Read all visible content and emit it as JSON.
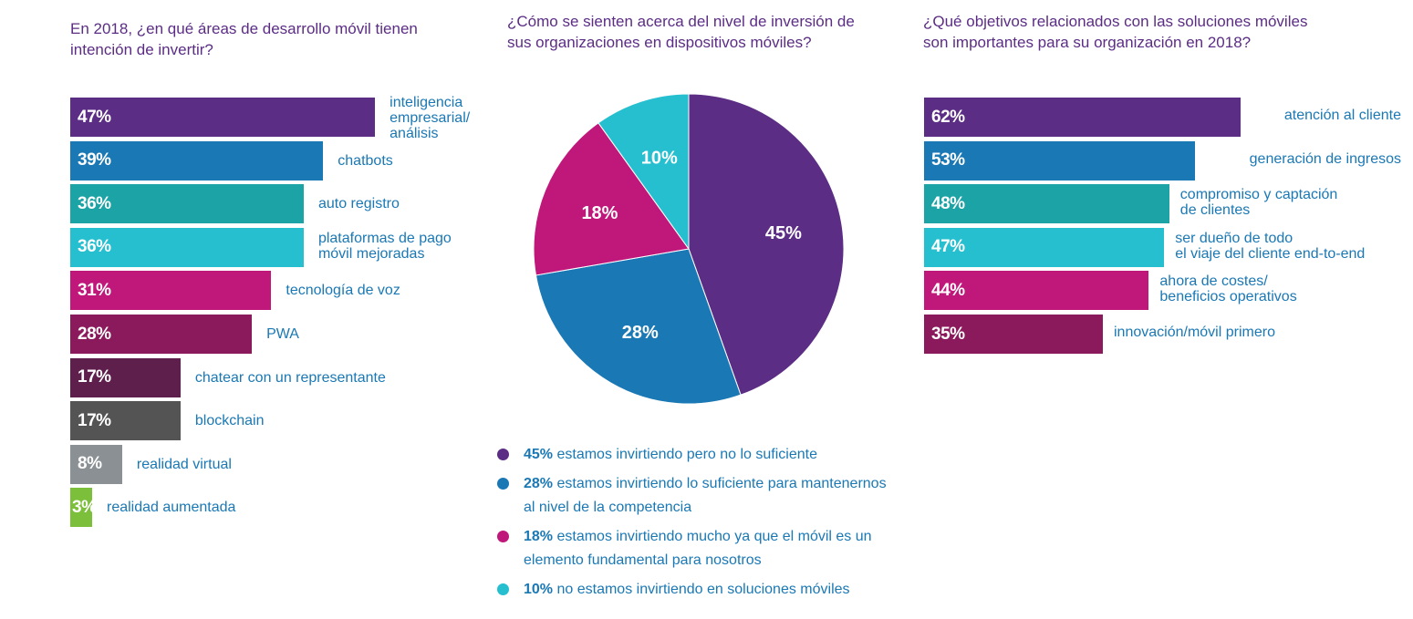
{
  "colors": {
    "title": "#5b2d84",
    "label": "#1a78b4"
  },
  "left": {
    "title": "En 2018, ¿en qué áreas de desarrollo móvil tienen\nintención de invertir?",
    "max": 100,
    "chart_data": {
      "type": "bar",
      "categories": [
        "inteligencia\nempresarial/\nanálisis",
        "chatbots",
        "auto registro",
        "plataformas de pago\nmóvil mejoradas",
        "tecnología de voz",
        "PWA",
        "chatear con un representante",
        "blockchain",
        "realidad virtual",
        "realidad aumentada"
      ],
      "values": [
        47,
        39,
        36,
        36,
        31,
        28,
        17,
        17,
        8,
        3
      ],
      "labels": [
        "47%",
        "39%",
        "36%",
        "36%",
        "31%",
        "28%",
        "17%",
        "17%",
        "8%",
        "3%"
      ],
      "colors": [
        "#5b2d84",
        "#1a78b4",
        "#1ba3a6",
        "#25bfd0",
        "#c0177a",
        "#8b1a5c",
        "#5e1f4d",
        "#545454",
        "#8a9093",
        "#7bbf3a"
      ]
    }
  },
  "middle": {
    "title": "¿Cómo se sienten acerca del nivel de inversión de\nsus organizaciones en dispositivos móviles?",
    "chart_data": {
      "type": "pie",
      "values": [
        45,
        28,
        18,
        10
      ],
      "labels": [
        "45%",
        "28%",
        "18%",
        "10%"
      ],
      "colors": [
        "#5b2d84",
        "#1a78b4",
        "#c0177a",
        "#25bfd0"
      ]
    },
    "legend": [
      {
        "pct": "45%",
        "text": " estamos invirtiendo pero no lo suficiente"
      },
      {
        "pct": "28%",
        "text": "  estamos invirtiendo lo suficiente para mantenernos\n        al nivel de la competencia"
      },
      {
        "pct": "18%",
        "text": " estamos invirtiendo mucho ya que el móvil es un\n       elemento fundamental para nosotros"
      },
      {
        "pct": "10%",
        "text": " no estamos invirtiendo en soluciones móviles"
      }
    ]
  },
  "right": {
    "title": "¿Qué objetivos relacionados con las soluciones móviles\nson importantes para su organización en 2018?",
    "max": 100,
    "chart_data": {
      "type": "bar",
      "categories": [
        "atención al cliente",
        "generación de ingresos",
        "compromiso y captación\nde clientes",
        "ser dueño de todo\nel viaje del cliente end-to-end",
        "ahora de costes/\nbeneficios operativos",
        "innovación/móvil primero"
      ],
      "values": [
        62,
        53,
        48,
        47,
        44,
        35
      ],
      "labels": [
        "62%",
        "53%",
        "48%",
        "47%",
        "44%",
        "35%"
      ],
      "colors": [
        "#5b2d84",
        "#1a78b4",
        "#1ba3a6",
        "#25bfd0",
        "#c0177a",
        "#8b1a5c"
      ]
    }
  }
}
